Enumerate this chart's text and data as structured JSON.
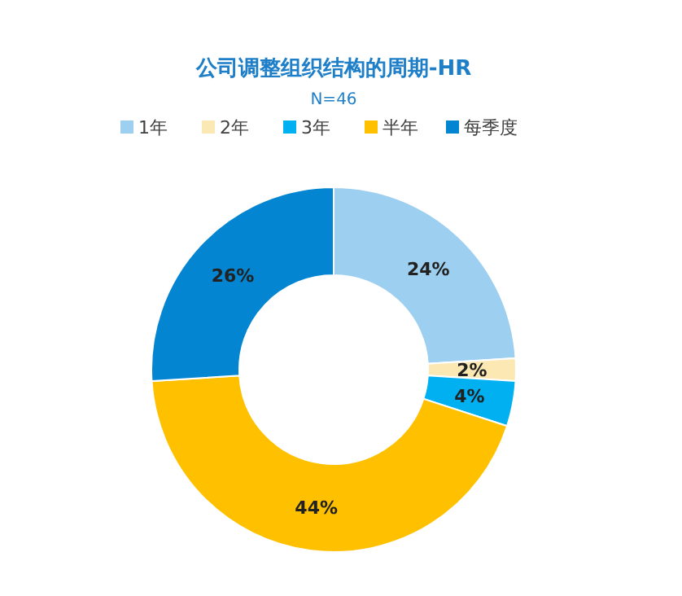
{
  "chart_data": {
    "type": "donut",
    "title": "公司调整组织结构的周期-HR",
    "subtitle": "N=46",
    "categories": [
      "1年",
      "2年",
      "3年",
      "半年",
      "每季度"
    ],
    "values": [
      24,
      2,
      4,
      44,
      26
    ],
    "value_labels": [
      "24%",
      "2%",
      "4%",
      "44%",
      "26%"
    ],
    "colors": [
      "#9dcff0",
      "#fce8b2",
      "#00b0f0",
      "#ffc000",
      "#0485d1"
    ],
    "legend": "top"
  }
}
